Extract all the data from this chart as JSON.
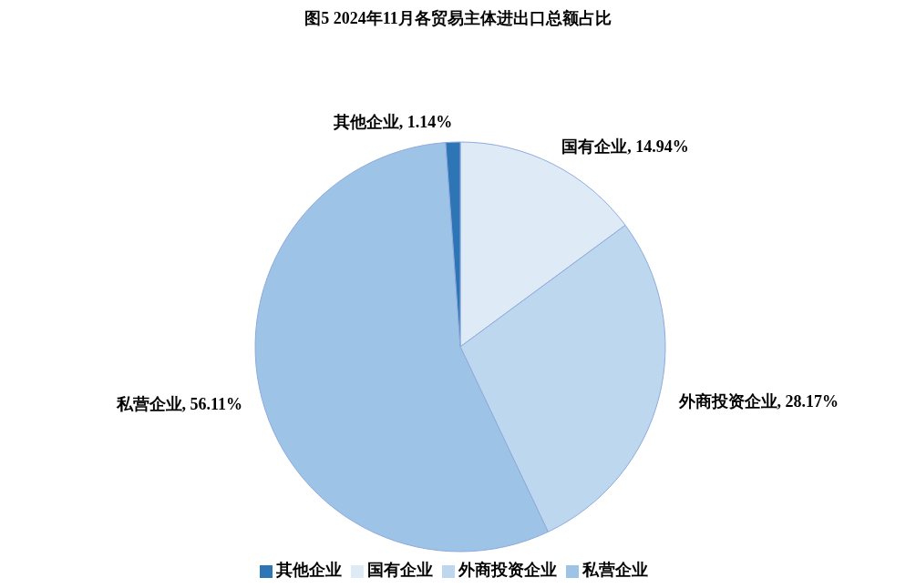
{
  "chart_data": {
    "type": "pie",
    "title": "图5 2024年11月各贸易主体进出口总额占比",
    "categories": [
      "国有企业",
      "外商投资企业",
      "私营企业",
      "其他企业"
    ],
    "values": [
      14.94,
      28.17,
      56.11,
      1.14
    ],
    "value_labels": [
      ", 14.94%",
      ", 28.17%",
      ", 56.11%",
      ", 1.14%"
    ],
    "colors": [
      "#deeaf6",
      "#bdd7ee",
      "#9dc3e6",
      "#2e75b6"
    ],
    "legend": "bottom"
  }
}
